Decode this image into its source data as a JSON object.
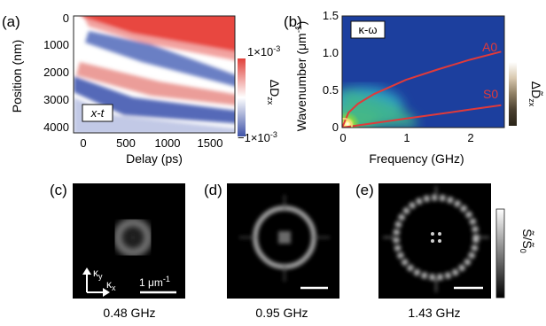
{
  "panel_a": {
    "label": "(a)",
    "inset": "x-t",
    "xlabel": "Delay (ps)",
    "ylabel": "Position (nm)",
    "xticks": [
      "0",
      "500",
      "1000",
      "1500"
    ],
    "yticks": [
      "0",
      "1000",
      "2000",
      "3000",
      "4000"
    ],
    "colorbar_max": "1×10",
    "colorbar_min": "−1×10",
    "colorbar_exp": "-3",
    "colorbar_label": "ΔD",
    "colorbar_sub": "zx",
    "colors": {
      "pos": "#e0403a",
      "zero": "#ffffff",
      "neg": "#3f53a8"
    }
  },
  "panel_b": {
    "label": "(b)",
    "inset": "κ-ω",
    "xlabel": "Frequency (GHz)",
    "ylabel": "Wavenumber (μm",
    "ylabel_sup": "-1",
    "ylabel_close": ")",
    "xticks": [
      "0",
      "1",
      "2"
    ],
    "yticks": [
      "0",
      "0.5",
      "1.0",
      "1.5"
    ],
    "curves": [
      "A0",
      "S0"
    ],
    "colorbar_label": "ΔD̃",
    "colorbar_sub": "zx",
    "colors": {
      "curve": "#e03a3a",
      "background": "#1c3f9e"
    }
  },
  "panel_c": {
    "label": "(c)",
    "caption": "0.48 GHz",
    "kx": "κ",
    "kx_sub": "x",
    "ky": "κ",
    "ky_sub": "y",
    "scale": "1 μm",
    "scale_sup": "-1"
  },
  "panel_d": {
    "label": "(d)",
    "caption": "0.95 GHz"
  },
  "panel_e": {
    "label": "(e)",
    "caption": "1.43 GHz",
    "colorbar_label": "S̃/S̃",
    "colorbar_sub": "0"
  },
  "chart_data": [
    {
      "type": "heatmap",
      "title": "x-t",
      "xlabel": "Delay (ps)",
      "ylabel": "Position (nm)",
      "xlim": [
        -100,
        1800
      ],
      "ylim": [
        4200,
        -100
      ],
      "colorbar_range": [
        -0.001,
        0.001
      ],
      "bands": [
        {
          "sign": "positive",
          "from_x": 0,
          "to_x": 1800,
          "top_y": 0,
          "bottom_y": 1700
        },
        {
          "sign": "negative",
          "from": [
            200,
            700
          ],
          "to": [
            1700,
            2300
          ]
        },
        {
          "sign": "positive",
          "from": [
            100,
            2000
          ],
          "to": [
            1800,
            3000
          ]
        },
        {
          "sign": "negative",
          "from": [
            0,
            2300
          ],
          "to": [
            1800,
            3500
          ]
        }
      ]
    },
    {
      "type": "heatmap",
      "title": "κ-ω",
      "xlabel": "Frequency (GHz)",
      "ylabel": "Wavenumber (μm-1)",
      "xlim": [
        0,
        2.55
      ],
      "ylim": [
        0,
        1.5
      ],
      "series": [
        {
          "name": "A0",
          "x": [
            0,
            0.1,
            0.25,
            0.5,
            1.0,
            1.5,
            2.0,
            2.5
          ],
          "y": [
            0,
            0.2,
            0.32,
            0.45,
            0.64,
            0.78,
            0.91,
            1.02
          ]
        },
        {
          "name": "S0",
          "x": [
            0,
            0.5,
            1.0,
            1.5,
            2.0,
            2.5
          ],
          "y": [
            0,
            0.06,
            0.12,
            0.18,
            0.24,
            0.3
          ]
        }
      ]
    }
  ]
}
